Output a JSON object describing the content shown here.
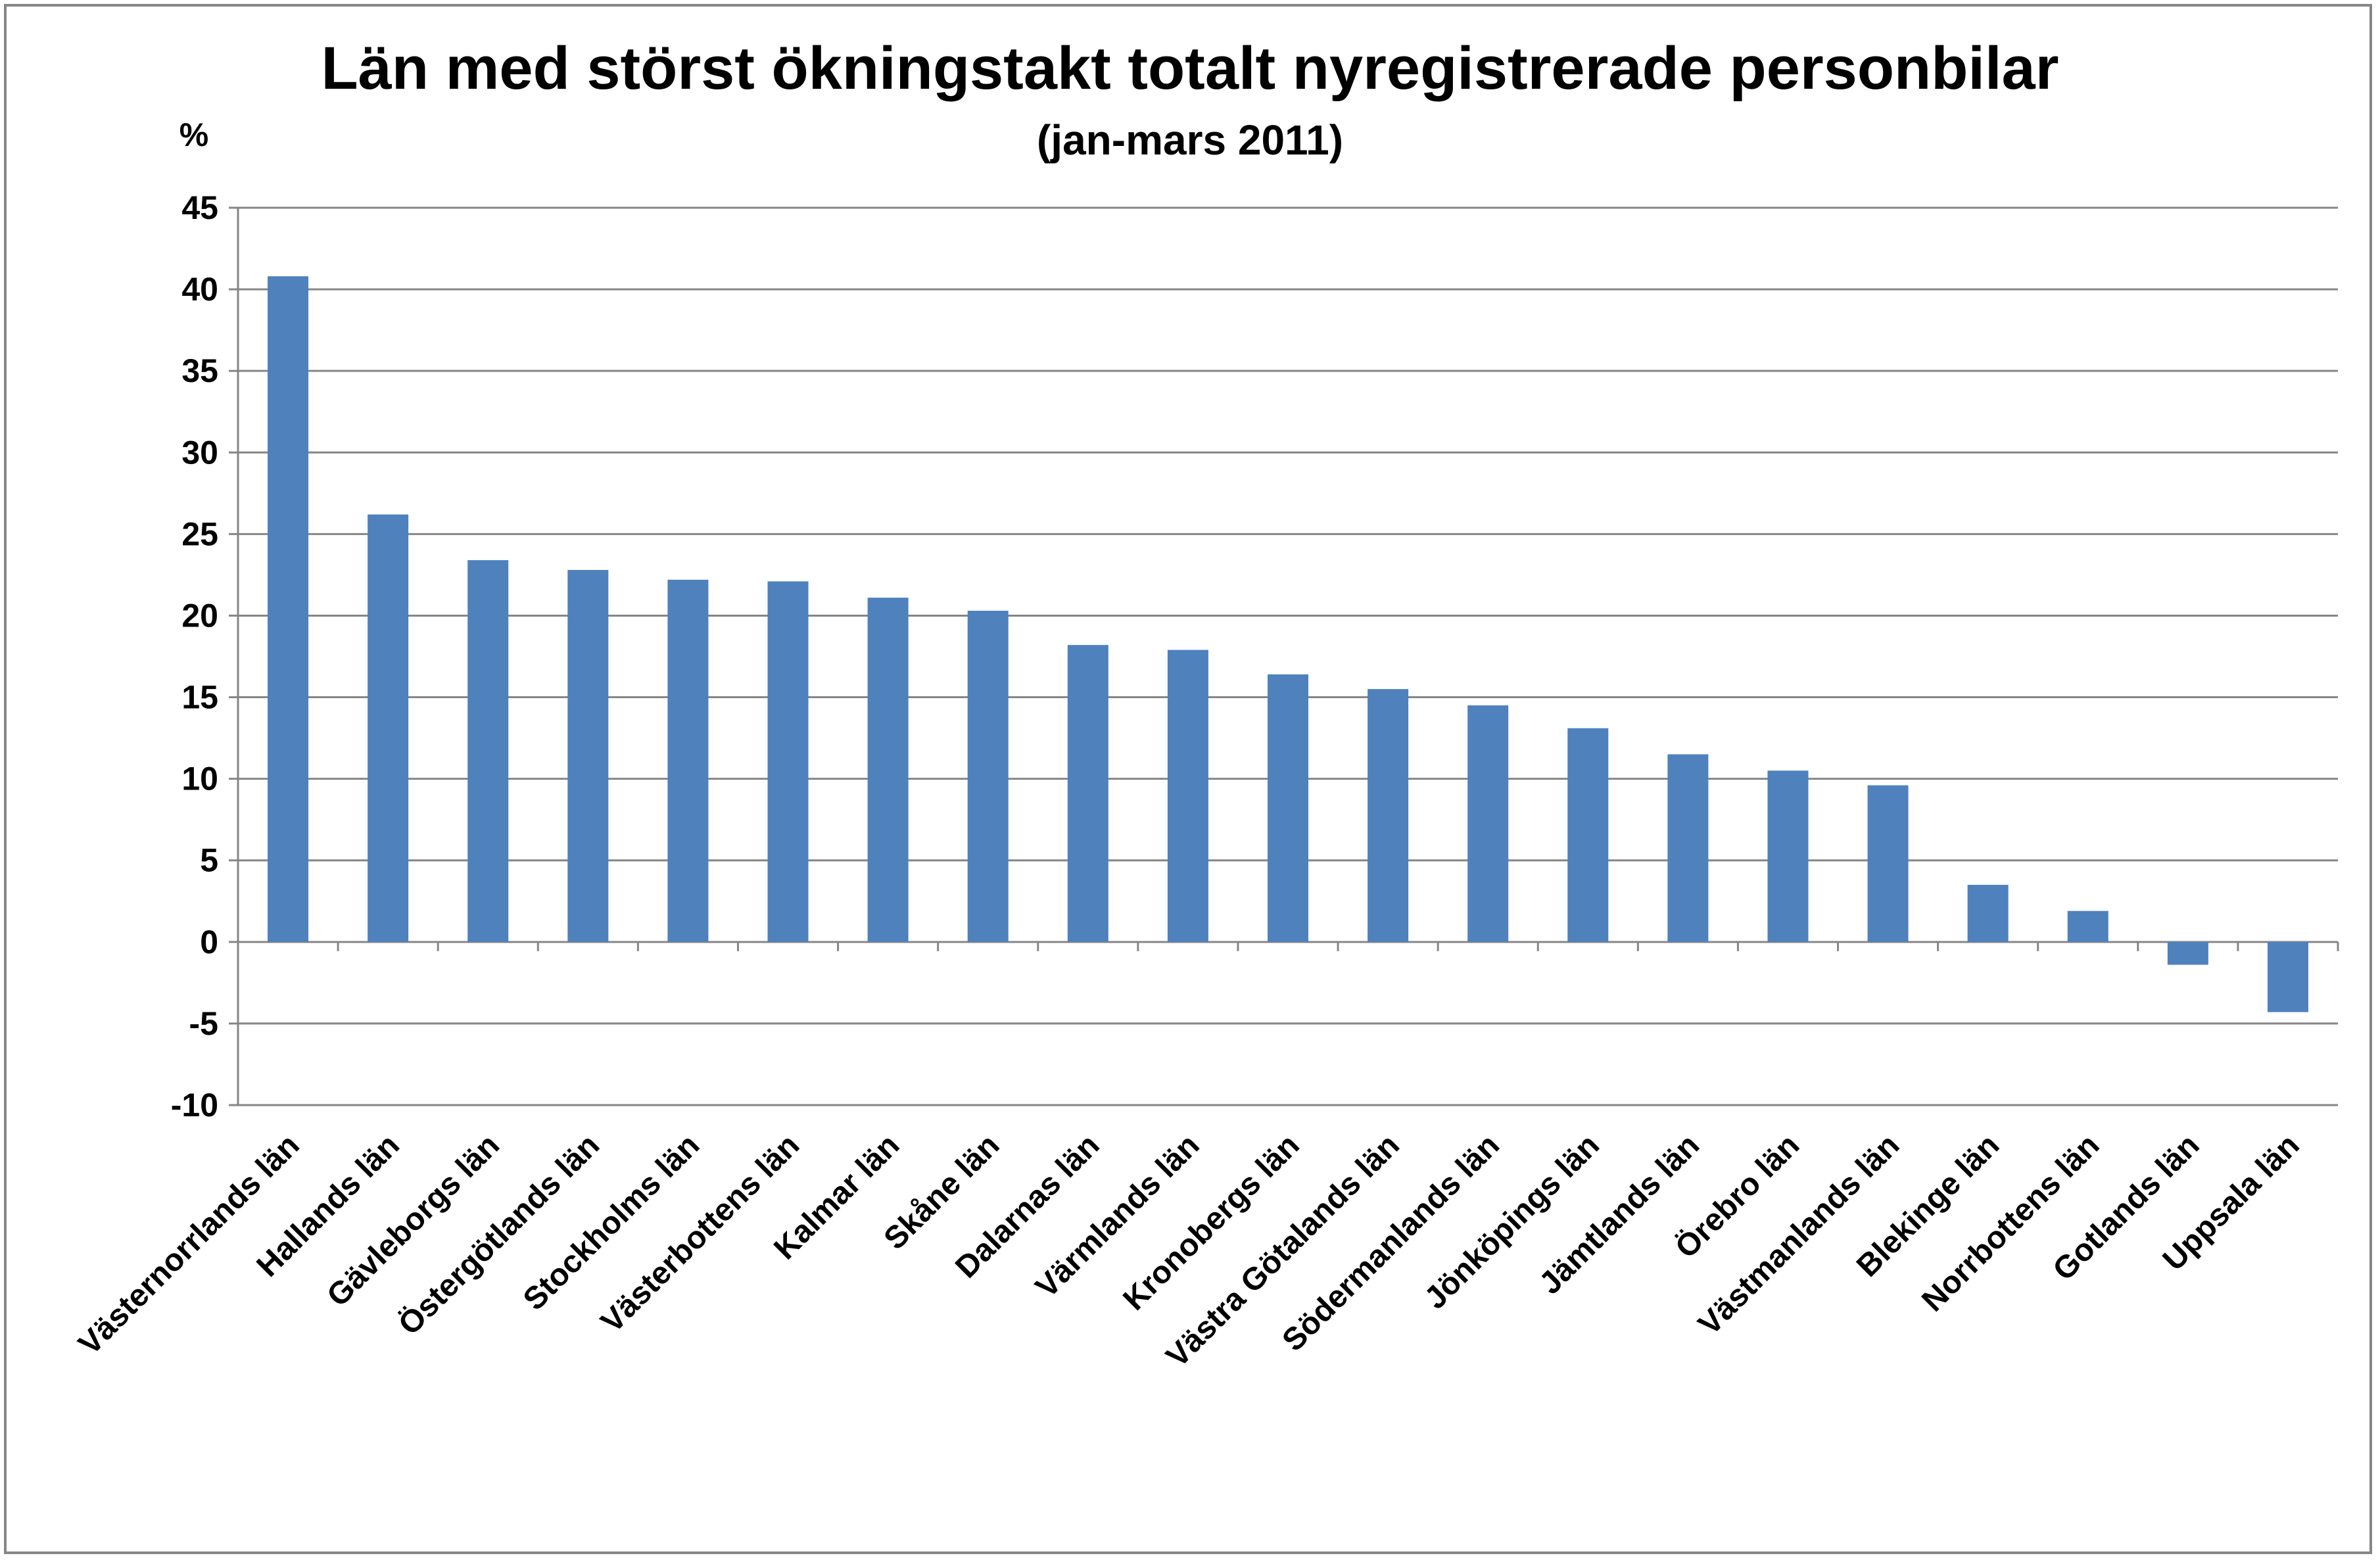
{
  "chart_data": {
    "type": "bar",
    "title": "Län med störst ökningstakt totalt nyregistrerade personbilar",
    "subtitle": "(jan-mars 2011)",
    "ylabel": "%",
    "xlabel": "",
    "ylim": [
      -10,
      45
    ],
    "yticks": [
      45,
      40,
      35,
      30,
      25,
      20,
      15,
      10,
      5,
      0,
      -5,
      -10
    ],
    "grid": true,
    "legend": "none",
    "bar_color": "#4F81BD",
    "categories": [
      "Västernorrlands län",
      "Hallands län",
      "Gävleborgs län",
      "Östergötlands län",
      "Stockholms län",
      "Västerbottens län",
      "Kalmar län",
      "Skåne län",
      "Dalarnas län",
      "Värmlands län",
      "Kronobergs län",
      "Västra Götalands län",
      "Södermanlands län",
      "Jönköpings län",
      "Jämtlands län",
      "Örebro län",
      "Västmanlands län",
      "Blekinge län",
      "Norrbottens län",
      "Gotlands län",
      "Uppsala län"
    ],
    "values": [
      40.8,
      26.2,
      23.4,
      22.8,
      22.2,
      22.1,
      21.1,
      20.3,
      18.2,
      17.9,
      16.4,
      15.5,
      14.5,
      13.1,
      11.5,
      10.5,
      9.6,
      3.5,
      1.9,
      -1.4,
      -4.3
    ]
  }
}
